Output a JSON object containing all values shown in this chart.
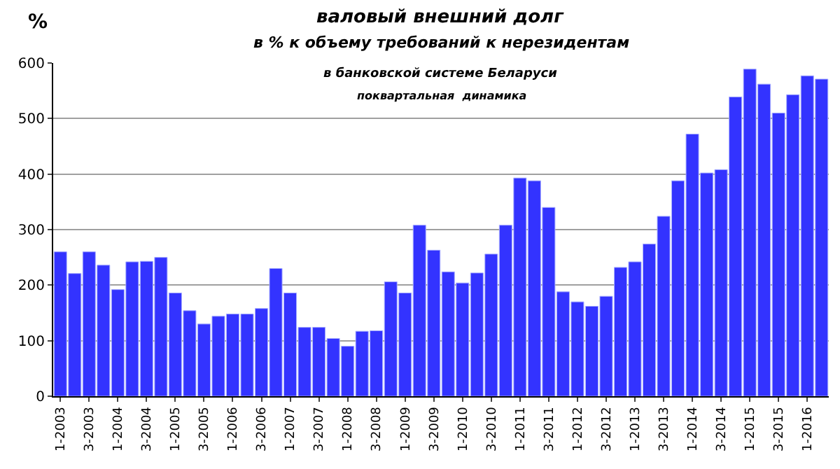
{
  "chart_data": {
    "type": "bar",
    "title": "валовый внешний долг",
    "subtitle": "в % к объему требований к нерезидентам\nв банковской системе Беларуси\nпоквартальная  динамика",
    "ylabel": "%",
    "categories": [
      "1-2003",
      null,
      "3-2003",
      null,
      "1-2004",
      null,
      "3-2004",
      null,
      "1-2005",
      null,
      "3-2005",
      null,
      "1-2006",
      null,
      "3-2006",
      null,
      "1-2007",
      null,
      "3-2007",
      null,
      "1-2008",
      null,
      "3-2008",
      null,
      "1-2009",
      null,
      "3-2009",
      null,
      "1-2010",
      null,
      "3-2010",
      null,
      "1-2011",
      null,
      "3-2011",
      null,
      "1-2012",
      null,
      "3-2012",
      null,
      "1-2013",
      null,
      "3-2013",
      null,
      "1-2014",
      null,
      "3-2014",
      null,
      "1-2015",
      null,
      "3-2015",
      null,
      "1-2016",
      null
    ],
    "values": [
      260,
      221,
      260,
      236,
      192,
      242,
      243,
      250,
      186,
      154,
      130,
      144,
      148,
      148,
      158,
      230,
      186,
      124,
      124,
      104,
      90,
      117,
      118,
      206,
      186,
      308,
      263,
      224,
      204,
      222,
      256,
      308,
      393,
      388,
      340,
      188,
      170,
      162,
      180,
      232,
      242,
      274,
      324,
      388,
      472,
      402,
      408,
      539,
      589,
      562,
      510,
      543,
      577,
      571
    ],
    "color": "#3333ff",
    "ylim": [
      0,
      600
    ],
    "yticks": [
      0,
      100,
      200,
      300,
      400,
      500,
      600
    ],
    "grid": "y"
  }
}
